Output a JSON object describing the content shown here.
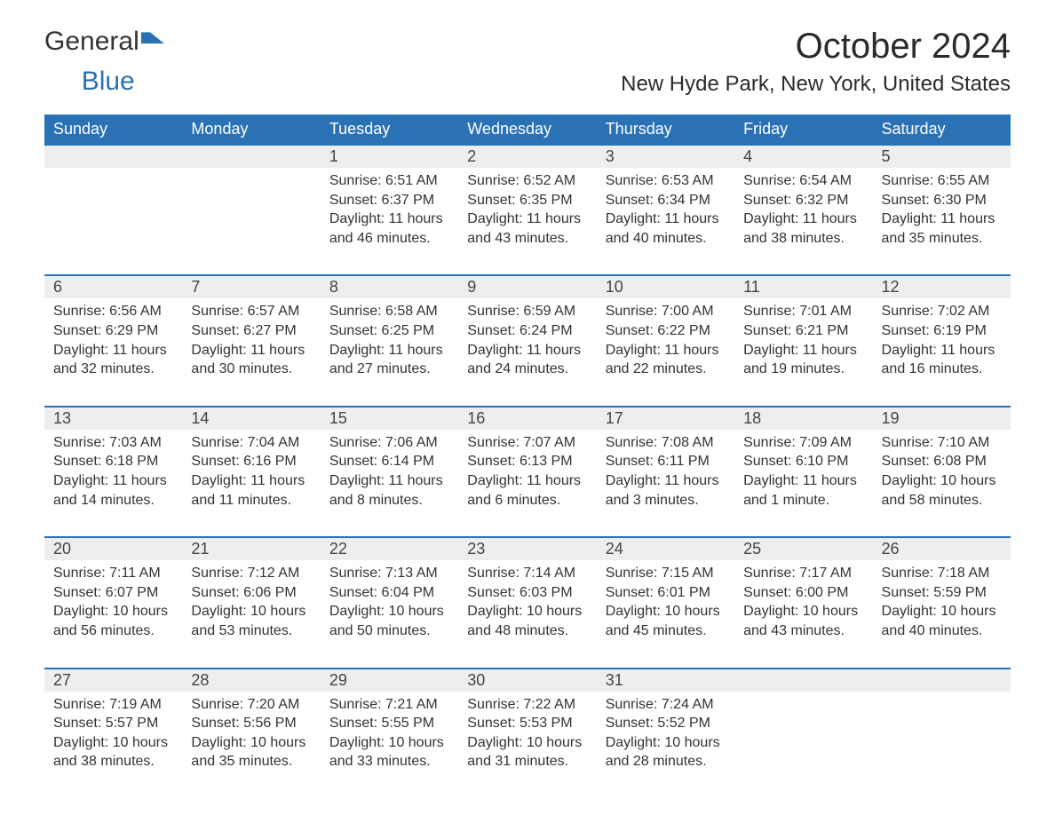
{
  "brand": {
    "part1": "General",
    "part2": "Blue"
  },
  "title": "October 2024",
  "location": "New Hyde Park, New York, United States",
  "colors": {
    "header_bg": "#2a72b5",
    "header_text": "#ffffff",
    "daynum_bg": "#eeeeee",
    "border": "#2a72b5",
    "text": "#333333",
    "page_bg": "#ffffff"
  },
  "weekdays": [
    "Sunday",
    "Monday",
    "Tuesday",
    "Wednesday",
    "Thursday",
    "Friday",
    "Saturday"
  ],
  "weeks": [
    [
      null,
      null,
      {
        "day": "1",
        "sunrise": "Sunrise: 6:51 AM",
        "sunset": "Sunset: 6:37 PM",
        "daylight1": "Daylight: 11 hours",
        "daylight2": "and 46 minutes."
      },
      {
        "day": "2",
        "sunrise": "Sunrise: 6:52 AM",
        "sunset": "Sunset: 6:35 PM",
        "daylight1": "Daylight: 11 hours",
        "daylight2": "and 43 minutes."
      },
      {
        "day": "3",
        "sunrise": "Sunrise: 6:53 AM",
        "sunset": "Sunset: 6:34 PM",
        "daylight1": "Daylight: 11 hours",
        "daylight2": "and 40 minutes."
      },
      {
        "day": "4",
        "sunrise": "Sunrise: 6:54 AM",
        "sunset": "Sunset: 6:32 PM",
        "daylight1": "Daylight: 11 hours",
        "daylight2": "and 38 minutes."
      },
      {
        "day": "5",
        "sunrise": "Sunrise: 6:55 AM",
        "sunset": "Sunset: 6:30 PM",
        "daylight1": "Daylight: 11 hours",
        "daylight2": "and 35 minutes."
      }
    ],
    [
      {
        "day": "6",
        "sunrise": "Sunrise: 6:56 AM",
        "sunset": "Sunset: 6:29 PM",
        "daylight1": "Daylight: 11 hours",
        "daylight2": "and 32 minutes."
      },
      {
        "day": "7",
        "sunrise": "Sunrise: 6:57 AM",
        "sunset": "Sunset: 6:27 PM",
        "daylight1": "Daylight: 11 hours",
        "daylight2": "and 30 minutes."
      },
      {
        "day": "8",
        "sunrise": "Sunrise: 6:58 AM",
        "sunset": "Sunset: 6:25 PM",
        "daylight1": "Daylight: 11 hours",
        "daylight2": "and 27 minutes."
      },
      {
        "day": "9",
        "sunrise": "Sunrise: 6:59 AM",
        "sunset": "Sunset: 6:24 PM",
        "daylight1": "Daylight: 11 hours",
        "daylight2": "and 24 minutes."
      },
      {
        "day": "10",
        "sunrise": "Sunrise: 7:00 AM",
        "sunset": "Sunset: 6:22 PM",
        "daylight1": "Daylight: 11 hours",
        "daylight2": "and 22 minutes."
      },
      {
        "day": "11",
        "sunrise": "Sunrise: 7:01 AM",
        "sunset": "Sunset: 6:21 PM",
        "daylight1": "Daylight: 11 hours",
        "daylight2": "and 19 minutes."
      },
      {
        "day": "12",
        "sunrise": "Sunrise: 7:02 AM",
        "sunset": "Sunset: 6:19 PM",
        "daylight1": "Daylight: 11 hours",
        "daylight2": "and 16 minutes."
      }
    ],
    [
      {
        "day": "13",
        "sunrise": "Sunrise: 7:03 AM",
        "sunset": "Sunset: 6:18 PM",
        "daylight1": "Daylight: 11 hours",
        "daylight2": "and 14 minutes."
      },
      {
        "day": "14",
        "sunrise": "Sunrise: 7:04 AM",
        "sunset": "Sunset: 6:16 PM",
        "daylight1": "Daylight: 11 hours",
        "daylight2": "and 11 minutes."
      },
      {
        "day": "15",
        "sunrise": "Sunrise: 7:06 AM",
        "sunset": "Sunset: 6:14 PM",
        "daylight1": "Daylight: 11 hours",
        "daylight2": "and 8 minutes."
      },
      {
        "day": "16",
        "sunrise": "Sunrise: 7:07 AM",
        "sunset": "Sunset: 6:13 PM",
        "daylight1": "Daylight: 11 hours",
        "daylight2": "and 6 minutes."
      },
      {
        "day": "17",
        "sunrise": "Sunrise: 7:08 AM",
        "sunset": "Sunset: 6:11 PM",
        "daylight1": "Daylight: 11 hours",
        "daylight2": "and 3 minutes."
      },
      {
        "day": "18",
        "sunrise": "Sunrise: 7:09 AM",
        "sunset": "Sunset: 6:10 PM",
        "daylight1": "Daylight: 11 hours",
        "daylight2": "and 1 minute."
      },
      {
        "day": "19",
        "sunrise": "Sunrise: 7:10 AM",
        "sunset": "Sunset: 6:08 PM",
        "daylight1": "Daylight: 10 hours",
        "daylight2": "and 58 minutes."
      }
    ],
    [
      {
        "day": "20",
        "sunrise": "Sunrise: 7:11 AM",
        "sunset": "Sunset: 6:07 PM",
        "daylight1": "Daylight: 10 hours",
        "daylight2": "and 56 minutes."
      },
      {
        "day": "21",
        "sunrise": "Sunrise: 7:12 AM",
        "sunset": "Sunset: 6:06 PM",
        "daylight1": "Daylight: 10 hours",
        "daylight2": "and 53 minutes."
      },
      {
        "day": "22",
        "sunrise": "Sunrise: 7:13 AM",
        "sunset": "Sunset: 6:04 PM",
        "daylight1": "Daylight: 10 hours",
        "daylight2": "and 50 minutes."
      },
      {
        "day": "23",
        "sunrise": "Sunrise: 7:14 AM",
        "sunset": "Sunset: 6:03 PM",
        "daylight1": "Daylight: 10 hours",
        "daylight2": "and 48 minutes."
      },
      {
        "day": "24",
        "sunrise": "Sunrise: 7:15 AM",
        "sunset": "Sunset: 6:01 PM",
        "daylight1": "Daylight: 10 hours",
        "daylight2": "and 45 minutes."
      },
      {
        "day": "25",
        "sunrise": "Sunrise: 7:17 AM",
        "sunset": "Sunset: 6:00 PM",
        "daylight1": "Daylight: 10 hours",
        "daylight2": "and 43 minutes."
      },
      {
        "day": "26",
        "sunrise": "Sunrise: 7:18 AM",
        "sunset": "Sunset: 5:59 PM",
        "daylight1": "Daylight: 10 hours",
        "daylight2": "and 40 minutes."
      }
    ],
    [
      {
        "day": "27",
        "sunrise": "Sunrise: 7:19 AM",
        "sunset": "Sunset: 5:57 PM",
        "daylight1": "Daylight: 10 hours",
        "daylight2": "and 38 minutes."
      },
      {
        "day": "28",
        "sunrise": "Sunrise: 7:20 AM",
        "sunset": "Sunset: 5:56 PM",
        "daylight1": "Daylight: 10 hours",
        "daylight2": "and 35 minutes."
      },
      {
        "day": "29",
        "sunrise": "Sunrise: 7:21 AM",
        "sunset": "Sunset: 5:55 PM",
        "daylight1": "Daylight: 10 hours",
        "daylight2": "and 33 minutes."
      },
      {
        "day": "30",
        "sunrise": "Sunrise: 7:22 AM",
        "sunset": "Sunset: 5:53 PM",
        "daylight1": "Daylight: 10 hours",
        "daylight2": "and 31 minutes."
      },
      {
        "day": "31",
        "sunrise": "Sunrise: 7:24 AM",
        "sunset": "Sunset: 5:52 PM",
        "daylight1": "Daylight: 10 hours",
        "daylight2": "and 28 minutes."
      },
      null,
      null
    ]
  ]
}
